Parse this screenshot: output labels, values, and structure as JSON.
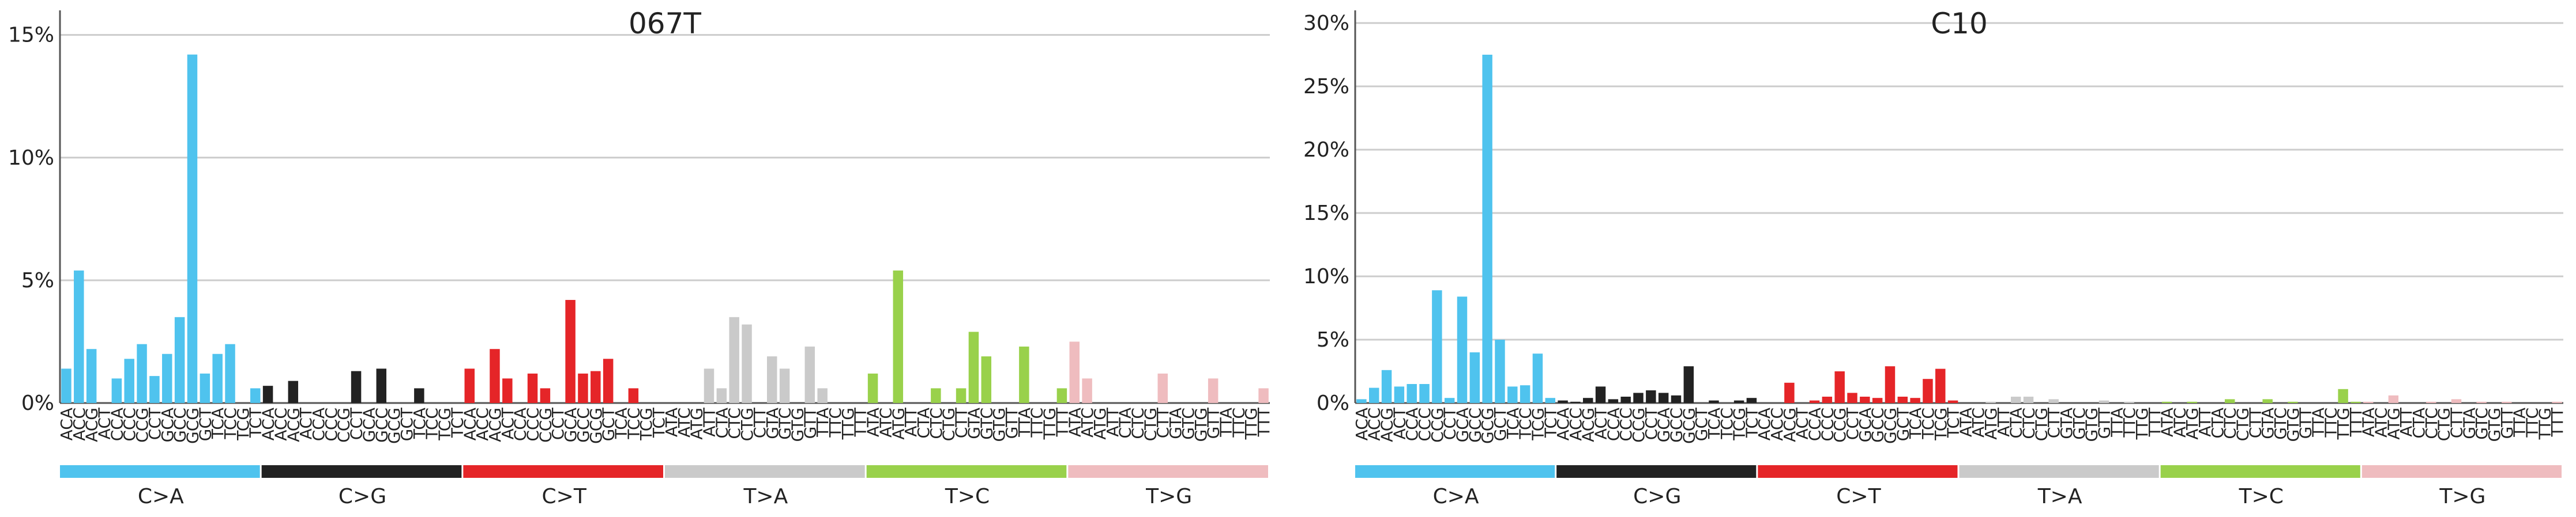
{
  "figure": {
    "mutation_classes": [
      {
        "label": "C>A",
        "color": "#4fc3ee"
      },
      {
        "label": "C>G",
        "color": "#222222"
      },
      {
        "label": "C>T",
        "color": "#e52528"
      },
      {
        "label": "T>A",
        "color": "#cacaca"
      },
      {
        "label": "T>C",
        "color": "#99d14b"
      },
      {
        "label": "T>G",
        "color": "#efbcbf"
      }
    ]
  },
  "chart_data": [
    {
      "type": "bar",
      "title": "067T",
      "xlabel": "",
      "ylabel": "",
      "ylim": [
        0,
        16
      ],
      "yticks": [
        "0%",
        "5%",
        "10%",
        "15%"
      ],
      "ytick_values": [
        0,
        5,
        10,
        15
      ],
      "grid": true,
      "categories": [
        "ACA",
        "ACC",
        "ACG",
        "ACT",
        "CCA",
        "CCC",
        "CCG",
        "CCT",
        "GCA",
        "GCC",
        "GCG",
        "GCT",
        "TCA",
        "TCC",
        "TCG",
        "TCT",
        "ACA",
        "ACC",
        "ACG",
        "ACT",
        "CCA",
        "CCC",
        "CCG",
        "CCT",
        "GCA",
        "GCC",
        "GCG",
        "GCT",
        "TCA",
        "TCC",
        "TCG",
        "TCT",
        "ACA",
        "ACC",
        "ACG",
        "ACT",
        "CCA",
        "CCC",
        "CCG",
        "CCT",
        "GCA",
        "GCC",
        "GCG",
        "GCT",
        "TCA",
        "TCC",
        "TCG",
        "TCT",
        "ATA",
        "ATC",
        "ATG",
        "ATT",
        "CTA",
        "CTC",
        "CTG",
        "CTT",
        "GTA",
        "GTC",
        "GTG",
        "GTT",
        "TTA",
        "TTC",
        "TTG",
        "TTT",
        "ATA",
        "ATC",
        "ATG",
        "ATT",
        "CTA",
        "CTC",
        "CTG",
        "CTT",
        "GTA",
        "GTC",
        "GTG",
        "GTT",
        "TTA",
        "TTC",
        "TTG",
        "TTT",
        "ATA",
        "ATC",
        "ATG",
        "ATT",
        "CTA",
        "CTC",
        "CTG",
        "CTT",
        "GTA",
        "GTC",
        "GTG",
        "GTT",
        "TTA",
        "TTC",
        "TTG",
        "TTT"
      ],
      "values": [
        1.4,
        5.4,
        2.2,
        0,
        1.0,
        1.8,
        2.4,
        1.1,
        2.0,
        3.5,
        14.2,
        1.2,
        2.0,
        2.4,
        0,
        0.6,
        0.7,
        0,
        0.9,
        0,
        0,
        0,
        0,
        1.3,
        0,
        1.4,
        0,
        0,
        0.6,
        0,
        0,
        0,
        1.4,
        0,
        2.2,
        1.0,
        0,
        1.2,
        0.6,
        0,
        4.2,
        1.2,
        1.3,
        1.8,
        0,
        0.6,
        0,
        0,
        0,
        0,
        0,
        1.4,
        0.6,
        3.5,
        3.2,
        0,
        1.9,
        1.4,
        0,
        2.3,
        0.6,
        0,
        0,
        0,
        1.2,
        0,
        5.4,
        0,
        0,
        0.6,
        0,
        0.6,
        2.9,
        1.9,
        0,
        0,
        2.3,
        0,
        0,
        0.6,
        2.5,
        1.0,
        0,
        0,
        0,
        0,
        0,
        1.2,
        0,
        0,
        0,
        1.0,
        0,
        0,
        0,
        0.6
      ]
    },
    {
      "type": "bar",
      "title": "C10",
      "xlabel": "",
      "ylabel": "",
      "ylim": [
        0,
        31
      ],
      "yticks": [
        "0%",
        "5%",
        "10%",
        "15%",
        "20%",
        "25%",
        "30%"
      ],
      "ytick_values": [
        0,
        5,
        10,
        15,
        20,
        25,
        30
      ],
      "grid": true,
      "categories": [
        "ACA",
        "ACC",
        "ACG",
        "ACT",
        "CCA",
        "CCC",
        "CCG",
        "CCT",
        "GCA",
        "GCC",
        "GCG",
        "GCT",
        "TCA",
        "TCC",
        "TCG",
        "TCT",
        "ACA",
        "ACC",
        "ACG",
        "ACT",
        "CCA",
        "CCC",
        "CCG",
        "CCT",
        "GCA",
        "GCC",
        "GCG",
        "GCT",
        "TCA",
        "TCC",
        "TCG",
        "TCT",
        "ACA",
        "ACC",
        "ACG",
        "ACT",
        "CCA",
        "CCC",
        "CCG",
        "CCT",
        "GCA",
        "GCC",
        "GCG",
        "GCT",
        "TCA",
        "TCC",
        "TCG",
        "TCT",
        "ATA",
        "ATC",
        "ATG",
        "ATT",
        "CTA",
        "CTC",
        "CTG",
        "CTT",
        "GTA",
        "GTC",
        "GTG",
        "GTT",
        "TTA",
        "TTC",
        "TTG",
        "TTT",
        "ATA",
        "ATC",
        "ATG",
        "ATT",
        "CTA",
        "CTC",
        "CTG",
        "CTT",
        "GTA",
        "GTC",
        "GTG",
        "GTT",
        "TTA",
        "TTC",
        "TTG",
        "TTT",
        "ATA",
        "ATC",
        "ATG",
        "ATT",
        "CTA",
        "CTC",
        "CTG",
        "CTT",
        "GTA",
        "GTC",
        "GTG",
        "GTT",
        "TTA",
        "TTC",
        "TTG",
        "TTT"
      ],
      "values": [
        0.3,
        1.2,
        2.6,
        1.3,
        1.5,
        1.5,
        8.9,
        0.4,
        8.4,
        4.0,
        27.5,
        5.0,
        1.3,
        1.4,
        3.9,
        0.4,
        0.2,
        0.1,
        0.4,
        1.3,
        0.3,
        0.5,
        0.8,
        1.0,
        0.8,
        0.6,
        2.9,
        0,
        0.2,
        0,
        0.2,
        0.4,
        0,
        0,
        1.6,
        0,
        0.2,
        0.5,
        2.5,
        0.8,
        0.5,
        0.4,
        2.9,
        0.5,
        0.4,
        1.9,
        2.7,
        0.2,
        0,
        0,
        0.1,
        0,
        0.5,
        0.5,
        0,
        0.3,
        0,
        0,
        0,
        0.2,
        0,
        0.1,
        0,
        0,
        0.1,
        0,
        0.1,
        0,
        0,
        0.3,
        0,
        0,
        0.3,
        0,
        0.1,
        0,
        0,
        0,
        1.1,
        0.1,
        0.1,
        0,
        0.6,
        0,
        0,
        0.1,
        0,
        0.3,
        0,
        0.1,
        0,
        0.1,
        0,
        0,
        0,
        0.1
      ]
    }
  ]
}
